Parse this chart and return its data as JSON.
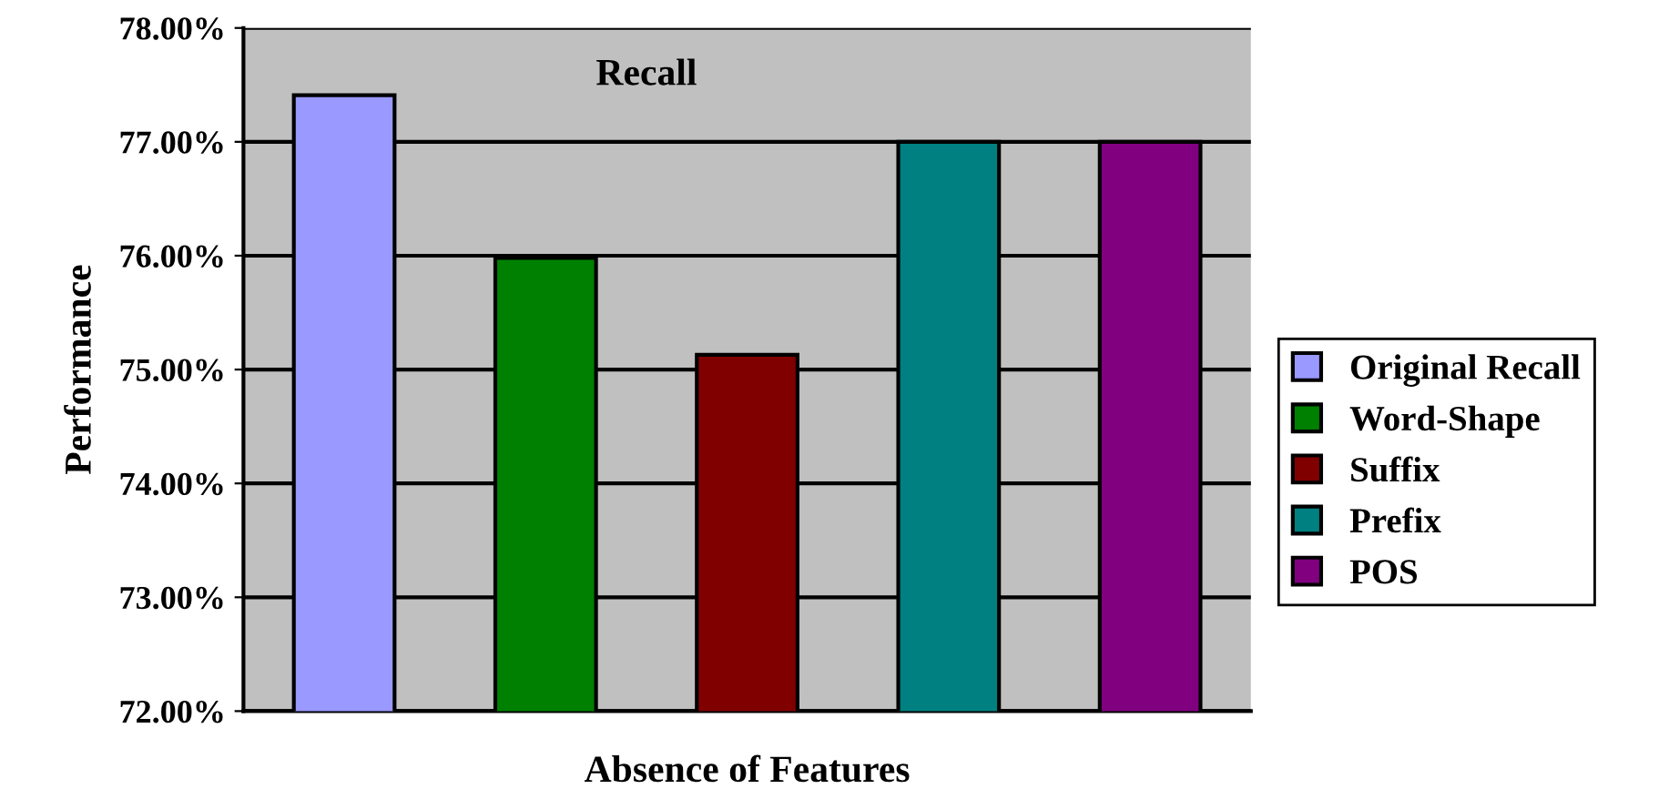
{
  "chart_data": {
    "type": "bar",
    "title": "Recall",
    "xlabel": "Absence of Features",
    "ylabel": "Performance",
    "categories": [
      null,
      null,
      null,
      null,
      null
    ],
    "series": [
      {
        "name": "Original Recall",
        "color": "#9999ff",
        "values": [
          77.41,
          null,
          null,
          null,
          null
        ]
      },
      {
        "name": "Word-Shape",
        "color": "#008000",
        "values": [
          null,
          75.98,
          null,
          null,
          null
        ]
      },
      {
        "name": "Suffix",
        "color": "#800000",
        "values": [
          null,
          null,
          75.13,
          null,
          null
        ]
      },
      {
        "name": "Prefix",
        "color": "#008080",
        "values": [
          null,
          null,
          null,
          77.0,
          null
        ]
      },
      {
        "name": "POS",
        "color": "#800080",
        "values": [
          null,
          null,
          null,
          null,
          77.0
        ]
      }
    ],
    "ylim": [
      72,
      78
    ],
    "yticks": [
      {
        "value": 72,
        "label": "72.00%"
      },
      {
        "value": 73,
        "label": "73.00%"
      },
      {
        "value": 74,
        "label": "74.00%"
      },
      {
        "value": 75,
        "label": "75.00%"
      },
      {
        "value": 76,
        "label": "76.00%"
      },
      {
        "value": 77,
        "label": "77.00%"
      },
      {
        "value": 78,
        "label": "78.00%"
      }
    ],
    "grid": "y",
    "legend": "right",
    "tick_labels": "y"
  }
}
